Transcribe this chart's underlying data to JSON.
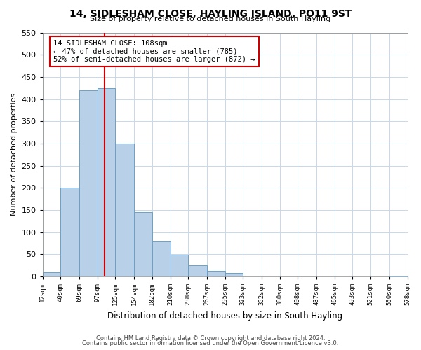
{
  "title": "14, SIDLESHAM CLOSE, HAYLING ISLAND, PO11 9ST",
  "subtitle": "Size of property relative to detached houses in South Hayling",
  "xlabel": "Distribution of detached houses by size in South Hayling",
  "ylabel": "Number of detached properties",
  "bin_edges": [
    12,
    40,
    69,
    97,
    125,
    154,
    182,
    210,
    238,
    267,
    295,
    323,
    352,
    380,
    408,
    437,
    465,
    493,
    521,
    550,
    578
  ],
  "bar_heights": [
    10,
    200,
    420,
    425,
    300,
    145,
    78,
    48,
    25,
    13,
    8,
    0,
    0,
    0,
    0,
    0,
    0,
    0,
    0,
    2
  ],
  "tick_labels": [
    "12sqm",
    "40sqm",
    "69sqm",
    "97sqm",
    "125sqm",
    "154sqm",
    "182sqm",
    "210sqm",
    "238sqm",
    "267sqm",
    "295sqm",
    "323sqm",
    "352sqm",
    "380sqm",
    "408sqm",
    "437sqm",
    "465sqm",
    "493sqm",
    "521sqm",
    "550sqm",
    "578sqm"
  ],
  "bar_color": "#b8d0e8",
  "bar_edge_color": "#6aa0c8",
  "vline_x": 108,
  "vline_color": "#cc0000",
  "ylim": [
    0,
    550
  ],
  "yticks": [
    0,
    50,
    100,
    150,
    200,
    250,
    300,
    350,
    400,
    450,
    500,
    550
  ],
  "annotation_title": "14 SIDLESHAM CLOSE: 108sqm",
  "annotation_line1": "← 47% of detached houses are smaller (785)",
  "annotation_line2": "52% of semi-detached houses are larger (872) →",
  "footer1": "Contains HM Land Registry data © Crown copyright and database right 2024.",
  "footer2": "Contains public sector information licensed under the Open Government Licence v3.0.",
  "background_color": "#ffffff",
  "grid_color": "#c8d8e8"
}
